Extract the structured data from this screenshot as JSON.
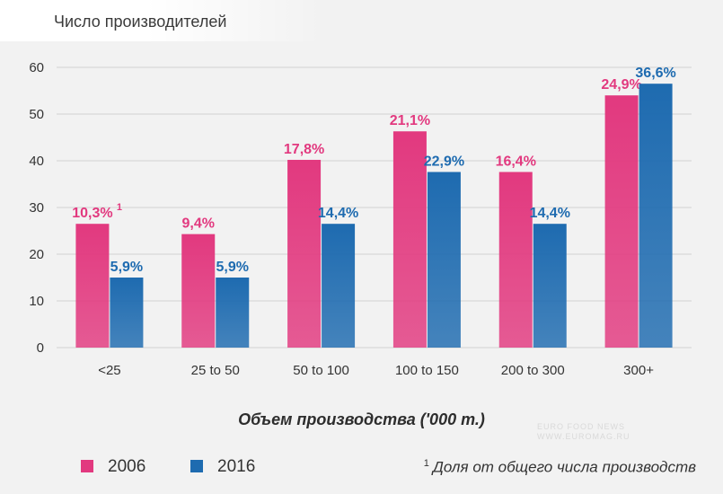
{
  "chart_data": {
    "type": "bar",
    "title": "Число производителей",
    "xlabel": "Объем производства ('000 т.)",
    "ylabel": "",
    "ylim": [
      0,
      60
    ],
    "yticks": [
      0,
      10,
      20,
      30,
      40,
      50,
      60
    ],
    "grid": true,
    "legend_position": "bottom-left",
    "categories": [
      "<25",
      "25 to 50",
      "50 to 100",
      "100 to 150",
      "200 to 300",
      "300+"
    ],
    "series": [
      {
        "name": "2006",
        "color": "#e2397f",
        "values": [
          26.5,
          24.3,
          40.2,
          46.3,
          37.6,
          54
        ],
        "labels": [
          "10,3%",
          "9,4%",
          "17,8%",
          "21,1%",
          "16,4%",
          "24,9%"
        ]
      },
      {
        "name": "2016",
        "color": "#1e6bb0",
        "values": [
          15,
          15,
          26.5,
          37.6,
          26.5,
          56.5
        ],
        "labels": [
          "5,9%",
          "5,9%",
          "14,4%",
          "22,9%",
          "14,4%",
          "36,6%"
        ]
      }
    ],
    "label_superscript": "1",
    "footnote_marker": "1",
    "footnote": "Доля от общего числа производств"
  },
  "watermark": {
    "line1": "EURO FOOD  NEWS",
    "line2": "WWW.EUROMAG.RU"
  }
}
